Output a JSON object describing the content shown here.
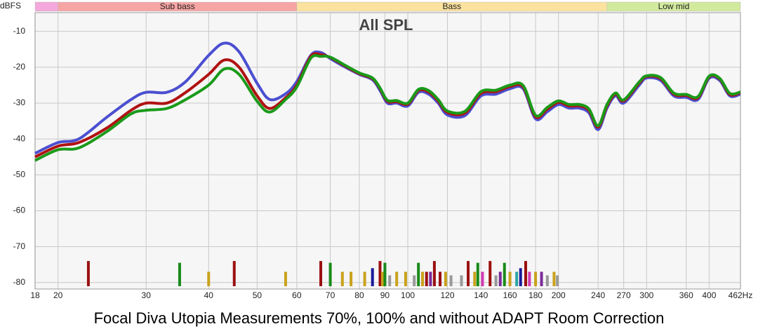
{
  "chart_data": {
    "type": "line",
    "title": "All SPL",
    "caption": "Focal Diva Utopia Measurements 70%, 100% and without ADAPT Room Correction",
    "y_label": "dBFS",
    "xscale": "log",
    "grid": true,
    "xlim": [
      18,
      462
    ],
    "ylim": [
      -81.8,
      -4.8
    ],
    "xticks": [
      18,
      20,
      30,
      40,
      50,
      60,
      70,
      80,
      90,
      100,
      120,
      140,
      160,
      180,
      200,
      240,
      270,
      300,
      360,
      400,
      {
        "value": 462,
        "label": "462Hz"
      }
    ],
    "yticks": [
      -10,
      -20,
      -30,
      -40,
      -50,
      -60,
      -70,
      -80
    ],
    "bands": [
      {
        "from": 18,
        "to": 20,
        "color": "#f5a8dc"
      },
      {
        "label": "Sub bass",
        "from": 20,
        "to": 60,
        "color": "#f7a4a4"
      },
      {
        "label": "Bass",
        "from": 60,
        "to": 250,
        "color": "#fbe29e"
      },
      {
        "label": "Low mid",
        "from": 250,
        "to": 462,
        "color": "#d2ea9e"
      }
    ],
    "x": [
      18,
      20,
      22,
      25,
      28,
      30,
      33,
      36,
      40,
      43,
      46,
      50,
      53,
      57,
      60,
      64,
      67,
      70,
      75,
      80,
      85,
      88,
      91,
      95,
      100,
      105,
      110,
      115,
      120,
      130,
      140,
      150,
      160,
      170,
      180,
      190,
      200,
      210,
      220,
      230,
      240,
      250,
      260,
      270,
      290,
      300,
      320,
      340,
      360,
      380,
      400,
      420,
      440,
      462
    ],
    "series": [
      {
        "color": "#4b4fd0",
        "values": [
          -44,
          -41,
          -40,
          -34,
          -29,
          -27,
          -27,
          -24,
          -16.7,
          -13.3,
          -15.7,
          -24.5,
          -29,
          -27.4,
          -24,
          -16.7,
          -15.9,
          -17.6,
          -20,
          -22,
          -23.5,
          -26.5,
          -30,
          -30,
          -30.8,
          -27,
          -27.5,
          -30,
          -33.3,
          -33.5,
          -28,
          -27.5,
          -26,
          -26,
          -34.4,
          -32.4,
          -30.4,
          -31.4,
          -31.4,
          -32.7,
          -37.4,
          -31.4,
          -28,
          -30,
          -25,
          -23,
          -23.7,
          -28,
          -28.4,
          -29,
          -23.1,
          -23.7,
          -28,
          -27.5
        ]
      },
      {
        "color": "#b01212",
        "values": [
          -45,
          -42,
          -41,
          -37,
          -32,
          -30,
          -30,
          -27,
          -22,
          -18,
          -20,
          -28,
          -31.5,
          -28.5,
          -25,
          -17,
          -16.5,
          -17.3,
          -19.7,
          -21.8,
          -23.2,
          -26,
          -29.5,
          -29.6,
          -30.3,
          -26.5,
          -26.9,
          -29.4,
          -32.6,
          -32.8,
          -27.3,
          -26.8,
          -25.4,
          -25.5,
          -33.8,
          -31.7,
          -29.8,
          -30.8,
          -30.8,
          -32,
          -36.7,
          -30.8,
          -27.5,
          -29.4,
          -24.4,
          -22.6,
          -23.2,
          -27.5,
          -27.9,
          -28.5,
          -22.7,
          -23.3,
          -27.6,
          -27.1
        ]
      },
      {
        "color": "#1a9a1a",
        "values": [
          -46,
          -43,
          -42.5,
          -38,
          -33,
          -32,
          -31.5,
          -29,
          -25,
          -20.5,
          -22,
          -29.5,
          -32.5,
          -29,
          -25.5,
          -17.5,
          -17,
          -17.2,
          -19.5,
          -21.6,
          -23,
          -25.8,
          -29.2,
          -29.3,
          -30,
          -26.2,
          -26.5,
          -29,
          -32.2,
          -32.3,
          -26.8,
          -26.4,
          -25,
          -25.1,
          -33.4,
          -31.2,
          -29.4,
          -30.4,
          -30.4,
          -31.6,
          -36.3,
          -30.4,
          -27.2,
          -29.1,
          -24.1,
          -22.4,
          -22.9,
          -27.2,
          -27.6,
          -28.2,
          -22.5,
          -23.1,
          -27.3,
          -26.9
        ]
      }
    ],
    "modes": {
      "x": [
        23,
        35,
        40,
        45,
        57,
        67,
        70,
        74,
        77,
        82,
        85,
        88,
        89,
        90,
        92,
        95,
        99,
        103,
        105,
        107,
        109,
        111,
        113,
        116,
        119,
        122,
        128,
        132,
        136,
        138,
        141,
        146,
        150,
        153,
        156,
        160,
        165,
        168,
        172,
        175,
        180,
        185,
        190,
        196,
        199
      ],
      "values": [
        -74,
        -74.5,
        -77,
        -74,
        -77,
        -74,
        -74.5,
        -77,
        -77,
        -77,
        -76,
        -74,
        -77,
        -74.5,
        -78,
        -77,
        -77,
        -78,
        -74.5,
        -77,
        -77,
        -77,
        -74,
        -77,
        -77,
        -78,
        -78,
        -74,
        -77,
        -74.5,
        -77,
        -74,
        -78,
        -77,
        -74.5,
        -77,
        -77,
        -76,
        -74,
        -77,
        -77,
        -77,
        -78,
        -77,
        -78
      ],
      "colors": [
        "#9b1010",
        "#1a8a1a",
        "#c9a21c",
        "#9b1010",
        "#c9a21c",
        "#9b1010",
        "#1a8a1a",
        "#c9a21c",
        "#c9a21c",
        "#c9a21c",
        "#1a1a9b",
        "#9b1010",
        "#c9a21c",
        "#1a8a1a",
        "#999999",
        "#c9a21c",
        "#c9a21c",
        "#999999",
        "#1a8a1a",
        "#c9a21c",
        "#9b1010",
        "#7a2a9a",
        "#9b1010",
        "#9b1010",
        "#c9a21c",
        "#999999",
        "#999999",
        "#9b1010",
        "#c9a21c",
        "#1a8a1a",
        "#d03bb0",
        "#9b1010",
        "#999999",
        "#7a2a9a",
        "#1a8a1a",
        "#c9a21c",
        "#2aa6a6",
        "#1a1a9b",
        "#9b1010",
        "#d03bb0",
        "#c9a21c",
        "#7a2a9a",
        "#999999",
        "#c9a21c",
        "#999999"
      ]
    }
  }
}
